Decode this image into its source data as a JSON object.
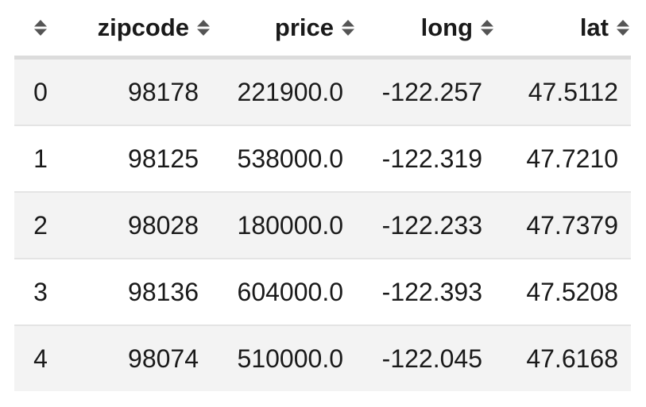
{
  "table": {
    "columns": [
      {
        "key": "index",
        "label": ""
      },
      {
        "key": "zipcode",
        "label": "zipcode"
      },
      {
        "key": "price",
        "label": "price"
      },
      {
        "key": "long",
        "label": "long"
      },
      {
        "key": "lat",
        "label": "lat"
      }
    ],
    "sort_icon": "sort-up-down-icon",
    "rows": [
      {
        "index": "0",
        "zipcode": "98178",
        "price": "221900.0",
        "long": "-122.257",
        "lat": "47.5112"
      },
      {
        "index": "1",
        "zipcode": "98125",
        "price": "538000.0",
        "long": "-122.319",
        "lat": "47.7210"
      },
      {
        "index": "2",
        "zipcode": "98028",
        "price": "180000.0",
        "long": "-122.233",
        "lat": "47.7379"
      },
      {
        "index": "3",
        "zipcode": "98136",
        "price": "604000.0",
        "long": "-122.393",
        "lat": "47.5208"
      },
      {
        "index": "4",
        "zipcode": "98074",
        "price": "510000.0",
        "long": "-122.045",
        "lat": "47.6168"
      }
    ]
  },
  "colors": {
    "header_border": "#dcdcdc",
    "row_stripe": "#f3f3f3",
    "row_border": "#e4e4e4",
    "sort_icon": "#555555"
  }
}
